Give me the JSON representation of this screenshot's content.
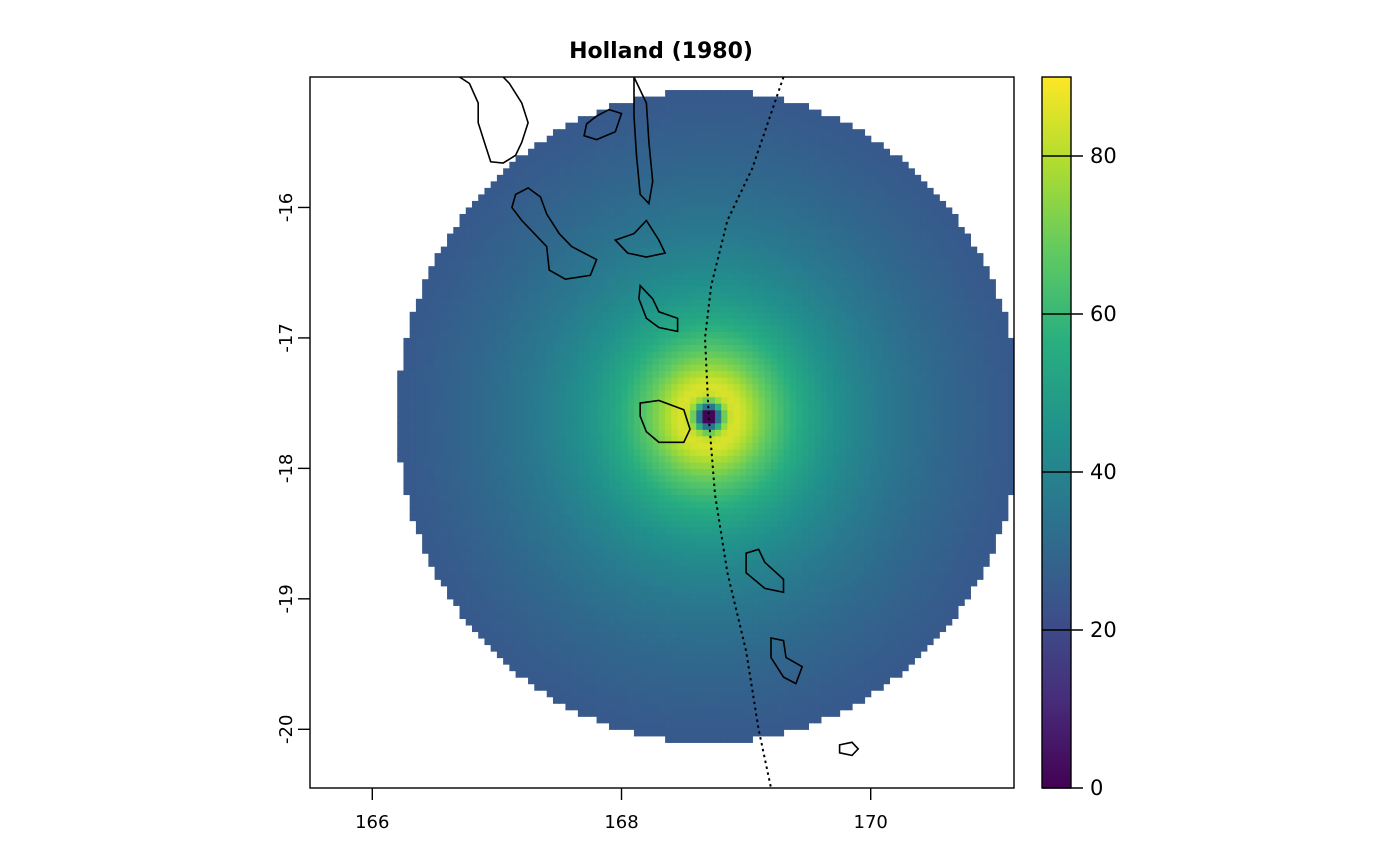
{
  "chart_data": {
    "type": "heatmap",
    "title": "Holland (1980)",
    "xlabel": "",
    "ylabel": "",
    "xlim": [
      165.5,
      171.15
    ],
    "ylim": [
      -20.45,
      -15.0
    ],
    "x_ticks": [
      "166",
      "168",
      "170"
    ],
    "y_ticks": [
      "-16",
      "-17",
      "-18",
      "-19",
      "-20"
    ],
    "colorbar": {
      "range": [
        0,
        90
      ],
      "ticks": [
        "0",
        "20",
        "40",
        "60",
        "80"
      ],
      "colormap": "viridis"
    },
    "field": {
      "model": "Holland (1980)",
      "center": [
        168.7,
        -17.6
      ],
      "outer_radius_deg": 2.5,
      "radius_max_wind_deg": 0.22,
      "max_value": 85
    },
    "track": {
      "style": "dotted",
      "points": [
        [
          169.3,
          -15.0
        ],
        [
          169.05,
          -15.7
        ],
        [
          168.85,
          -16.1
        ],
        [
          168.72,
          -16.6
        ],
        [
          168.67,
          -17.0
        ],
        [
          168.7,
          -17.6
        ],
        [
          168.75,
          -18.2
        ],
        [
          168.85,
          -18.8
        ],
        [
          169.0,
          -19.4
        ],
        [
          169.1,
          -20.0
        ],
        [
          169.2,
          -20.45
        ]
      ]
    },
    "islands": [
      {
        "name": "",
        "pts": [
          [
            166.6,
            -14.95
          ],
          [
            166.7,
            -15.0
          ],
          [
            166.78,
            -15.05
          ],
          [
            166.85,
            -15.2
          ],
          [
            166.85,
            -15.35
          ],
          [
            166.9,
            -15.5
          ],
          [
            166.95,
            -15.65
          ],
          [
            167.05,
            -15.66
          ],
          [
            167.15,
            -15.6
          ],
          [
            167.2,
            -15.5
          ],
          [
            167.25,
            -15.35
          ],
          [
            167.2,
            -15.2
          ],
          [
            167.1,
            -15.05
          ],
          [
            167.0,
            -14.95
          ]
        ]
      },
      {
        "name": "",
        "pts": [
          [
            167.15,
            -15.9
          ],
          [
            167.25,
            -15.85
          ],
          [
            167.35,
            -15.92
          ],
          [
            167.4,
            -16.05
          ],
          [
            167.5,
            -16.2
          ],
          [
            167.6,
            -16.3
          ],
          [
            167.8,
            -16.4
          ],
          [
            167.75,
            -16.52
          ],
          [
            167.55,
            -16.55
          ],
          [
            167.42,
            -16.48
          ],
          [
            167.4,
            -16.3
          ],
          [
            167.3,
            -16.2
          ],
          [
            167.2,
            -16.1
          ],
          [
            167.12,
            -16.0
          ]
        ]
      },
      {
        "name": "",
        "pts": [
          [
            168.1,
            -15.0
          ],
          [
            168.2,
            -15.2
          ],
          [
            168.22,
            -15.5
          ],
          [
            168.25,
            -15.8
          ],
          [
            168.22,
            -15.97
          ],
          [
            168.15,
            -15.9
          ],
          [
            168.12,
            -15.6
          ],
          [
            168.1,
            -15.3
          ]
        ]
      },
      {
        "name": "",
        "pts": [
          [
            167.8,
            -15.3
          ],
          [
            167.9,
            -15.25
          ],
          [
            168.0,
            -15.28
          ],
          [
            167.95,
            -15.42
          ],
          [
            167.8,
            -15.48
          ],
          [
            167.7,
            -15.45
          ],
          [
            167.72,
            -15.36
          ]
        ]
      },
      {
        "name": "",
        "pts": [
          [
            167.95,
            -16.25
          ],
          [
            168.1,
            -16.2
          ],
          [
            168.2,
            -16.1
          ],
          [
            168.3,
            -16.25
          ],
          [
            168.35,
            -16.35
          ],
          [
            168.2,
            -16.38
          ],
          [
            168.05,
            -16.35
          ]
        ]
      },
      {
        "name": "",
        "pts": [
          [
            168.15,
            -16.6
          ],
          [
            168.25,
            -16.7
          ],
          [
            168.3,
            -16.8
          ],
          [
            168.45,
            -16.85
          ],
          [
            168.45,
            -16.95
          ],
          [
            168.3,
            -16.92
          ],
          [
            168.2,
            -16.85
          ],
          [
            168.14,
            -16.7
          ]
        ]
      },
      {
        "name": "",
        "pts": [
          [
            168.15,
            -17.5
          ],
          [
            168.3,
            -17.48
          ],
          [
            168.5,
            -17.55
          ],
          [
            168.55,
            -17.7
          ],
          [
            168.5,
            -17.8
          ],
          [
            168.3,
            -17.8
          ],
          [
            168.2,
            -17.72
          ],
          [
            168.15,
            -17.6
          ]
        ]
      },
      {
        "name": "",
        "pts": [
          [
            169.0,
            -18.65
          ],
          [
            169.1,
            -18.62
          ],
          [
            169.15,
            -18.72
          ],
          [
            169.3,
            -18.85
          ],
          [
            169.3,
            -18.95
          ],
          [
            169.15,
            -18.92
          ],
          [
            169.0,
            -18.8
          ]
        ]
      },
      {
        "name": "",
        "pts": [
          [
            169.2,
            -19.3
          ],
          [
            169.3,
            -19.32
          ],
          [
            169.32,
            -19.45
          ],
          [
            169.45,
            -19.52
          ],
          [
            169.4,
            -19.65
          ],
          [
            169.3,
            -19.6
          ],
          [
            169.2,
            -19.45
          ]
        ]
      },
      {
        "name": "",
        "pts": [
          [
            169.75,
            -20.12
          ],
          [
            169.85,
            -20.1
          ],
          [
            169.9,
            -20.15
          ],
          [
            169.85,
            -20.2
          ],
          [
            169.75,
            -20.18
          ]
        ]
      }
    ]
  }
}
